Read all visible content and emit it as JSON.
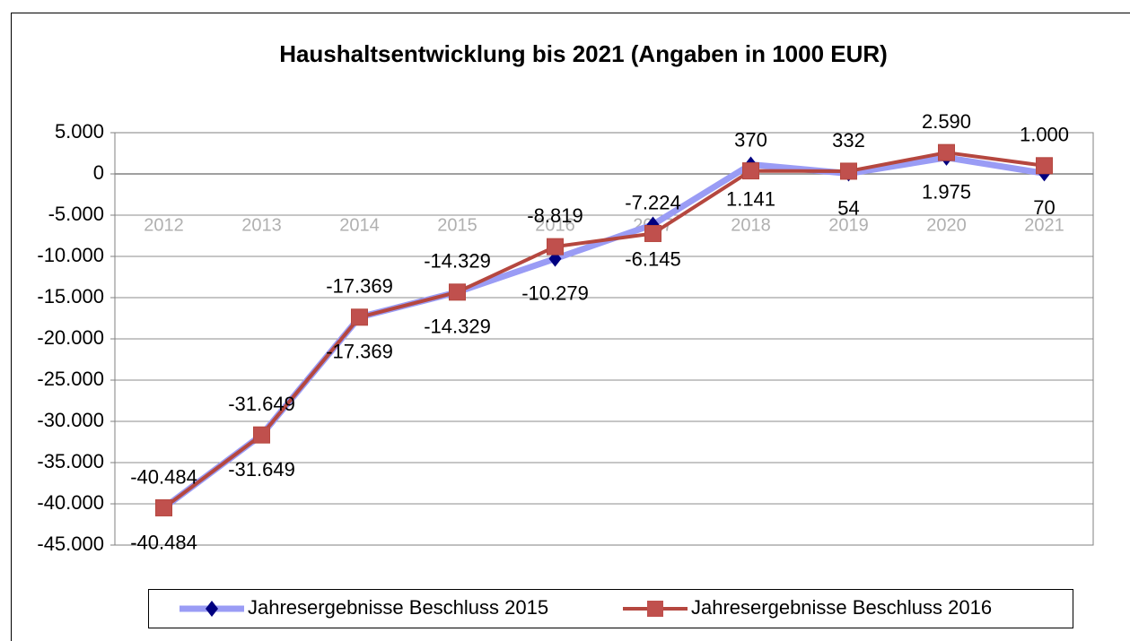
{
  "chart_data": {
    "type": "line",
    "title": "Haushaltsentwicklung bis 2021 (Angaben in 1000 EUR)",
    "categories": [
      "2012",
      "2013",
      "2014",
      "2015",
      "2016",
      "2017",
      "2018",
      "2019",
      "2020",
      "2021"
    ],
    "series": [
      {
        "name": "Jahresergebnisse Beschluss 2015",
        "color": "#9a9cf5",
        "marker_color": "#000080",
        "marker": "diamond",
        "values": [
          -40484,
          -31649,
          -17369,
          -14329,
          -10279,
          -6145,
          1141,
          54,
          1975,
          70
        ],
        "value_labels": [
          "-40.484",
          "-31.649",
          "-17.369",
          "-14.329",
          "-10.279",
          "-6.145",
          "1.141",
          "54",
          "1.975",
          "70"
        ]
      },
      {
        "name": "Jahresergebnisse Beschluss 2016",
        "color": "#b5473f",
        "marker_color": "#c0504d",
        "marker": "square",
        "values": [
          -40484,
          -31649,
          -17369,
          -14329,
          -8819,
          -7224,
          370,
          332,
          2590,
          1000
        ],
        "value_labels": [
          "-40.484",
          "-31.649",
          "-17.369",
          "-14.329",
          "-8.819",
          "-7.224",
          "370",
          "332",
          "2.590",
          "1.000"
        ]
      }
    ],
    "ylim": [
      -45000,
      5000
    ],
    "yticks": [
      {
        "value": -45000,
        "label": "-45.000"
      },
      {
        "value": -40000,
        "label": "-40.000"
      },
      {
        "value": -35000,
        "label": "-35.000"
      },
      {
        "value": -30000,
        "label": "-30.000"
      },
      {
        "value": -25000,
        "label": "-25.000"
      },
      {
        "value": -20000,
        "label": "-20.000"
      },
      {
        "value": -15000,
        "label": "-15.000"
      },
      {
        "value": -10000,
        "label": "-10.000"
      },
      {
        "value": -5000,
        "label": "-5.000"
      },
      0,
      {
        "value": 5000,
        "label": "5.000"
      }
    ],
    "grid": true,
    "legend": "bottom"
  }
}
